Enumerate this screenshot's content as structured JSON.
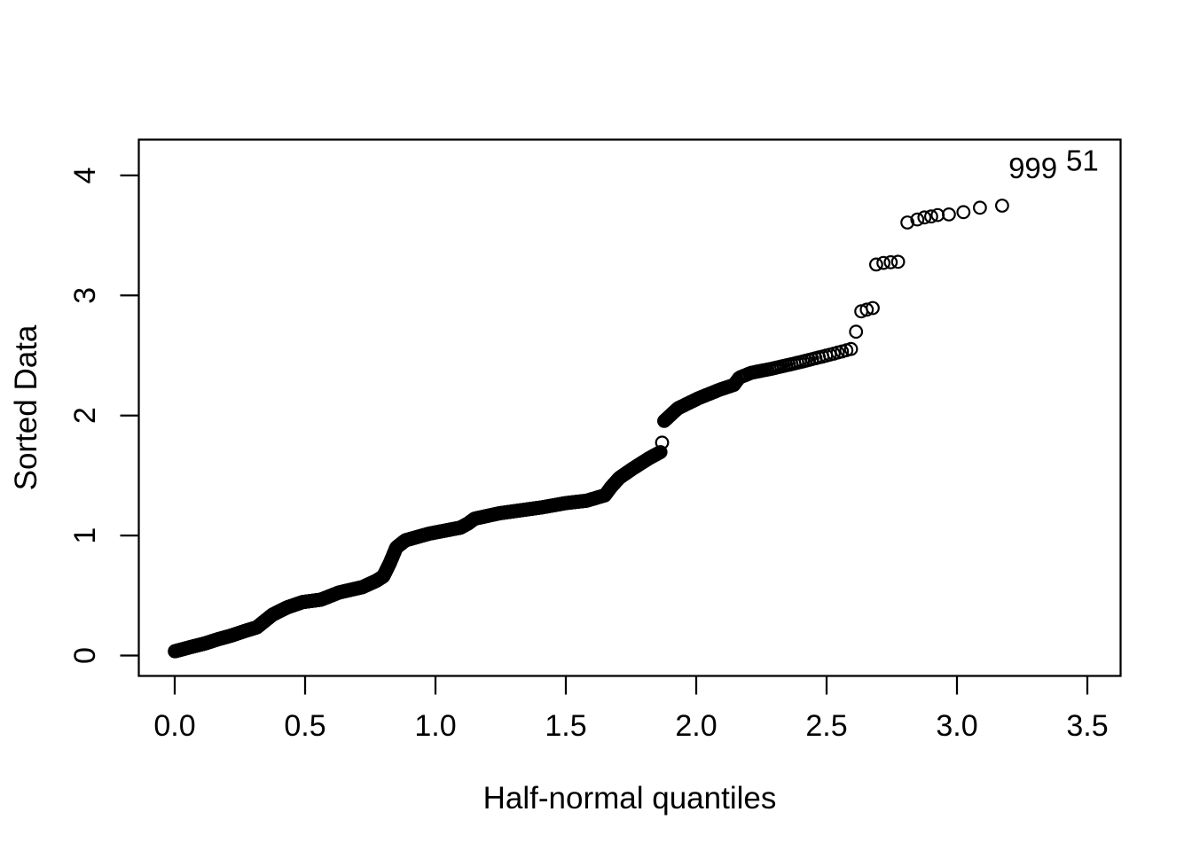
{
  "figure": {
    "background_color": "#ffffff",
    "foreground_color": "#000000",
    "description": "R half-normal quantile plot (faraway::halfnorm style) of 2000 absolute values; two largest observations labelled by index"
  },
  "chart_data": {
    "type": "scatter",
    "title": "",
    "xlabel": "Half-normal quantiles",
    "ylabel": "Sorted Data",
    "marker": "open-circle",
    "grid": "off",
    "n_points": 2000,
    "quantile_formula": "qnorm((n+i)/(2n+1)), i=1..n, n=2000",
    "xlim": [
      -0.14,
      3.62
    ],
    "ylim": [
      -0.17,
      4.29
    ],
    "x_ticks": [
      0.0,
      0.5,
      1.0,
      1.5,
      2.0,
      2.5,
      3.0,
      3.5
    ],
    "x_tick_labels": [
      "0.0",
      "0.5",
      "1.0",
      "1.5",
      "2.0",
      "2.5",
      "3.0",
      "3.5"
    ],
    "y_ticks": [
      0,
      1,
      2,
      3,
      4
    ],
    "y_tick_labels": [
      "0",
      "1",
      "2",
      "3",
      "4"
    ],
    "dense_band": {
      "comment": "centerline y as function of half-normal quantile q for the tightly overlapping points i=1..1982 (q from 0 to 2.596); piecewise linear anchors [q, y]",
      "dense_upto_index": 1982,
      "profile": [
        [
          0.0,
          0.035
        ],
        [
          0.06,
          0.07
        ],
        [
          0.115,
          0.1
        ],
        [
          0.165,
          0.135
        ],
        [
          0.215,
          0.165
        ],
        [
          0.27,
          0.205
        ],
        [
          0.315,
          0.235
        ],
        [
          0.335,
          0.27
        ],
        [
          0.375,
          0.34
        ],
        [
          0.43,
          0.4
        ],
        [
          0.49,
          0.445
        ],
        [
          0.56,
          0.465
        ],
        [
          0.63,
          0.525
        ],
        [
          0.72,
          0.57
        ],
        [
          0.775,
          0.625
        ],
        [
          0.8,
          0.66
        ],
        [
          0.825,
          0.77
        ],
        [
          0.85,
          0.9
        ],
        [
          0.885,
          0.96
        ],
        [
          0.975,
          1.015
        ],
        [
          1.095,
          1.065
        ],
        [
          1.125,
          1.1
        ],
        [
          1.15,
          1.14
        ],
        [
          1.245,
          1.185
        ],
        [
          1.41,
          1.235
        ],
        [
          1.5,
          1.27
        ],
        [
          1.58,
          1.29
        ],
        [
          1.65,
          1.335
        ],
        [
          1.672,
          1.4
        ],
        [
          1.705,
          1.48
        ],
        [
          1.755,
          1.555
        ],
        [
          1.82,
          1.645
        ],
        [
          1.863,
          1.695
        ],
        [
          1.875,
          1.95
        ],
        [
          1.93,
          2.06
        ],
        [
          2.01,
          2.145
        ],
        [
          2.09,
          2.215
        ],
        [
          2.145,
          2.255
        ],
        [
          2.165,
          2.315
        ],
        [
          2.21,
          2.355
        ],
        [
          2.29,
          2.39
        ],
        [
          2.4,
          2.445
        ],
        [
          2.51,
          2.505
        ],
        [
          2.596,
          2.555
        ]
      ],
      "gap_exclusion_q": [
        1.8635,
        1.8745
      ]
    },
    "sparse_points": [
      [
        1.869,
        1.774
      ],
      [
        2.613,
        2.698
      ],
      [
        2.633,
        2.868
      ],
      [
        2.654,
        2.882
      ],
      [
        2.677,
        2.895
      ],
      [
        2.69,
        3.258
      ],
      [
        2.718,
        3.271
      ],
      [
        2.746,
        3.277
      ],
      [
        2.774,
        3.281
      ],
      [
        2.81,
        3.608
      ],
      [
        2.848,
        3.633
      ],
      [
        2.875,
        3.65
      ],
      [
        2.901,
        3.658
      ],
      [
        2.926,
        3.67
      ],
      [
        2.969,
        3.675
      ],
      [
        3.025,
        3.694
      ],
      [
        3.088,
        3.731
      ],
      [
        3.173,
        3.748
      ]
    ],
    "labeled_points": [
      {
        "label": "999",
        "x": 3.291,
        "y": 4.065
      },
      {
        "label": "51",
        "x": 3.481,
        "y": 4.127
      }
    ]
  }
}
